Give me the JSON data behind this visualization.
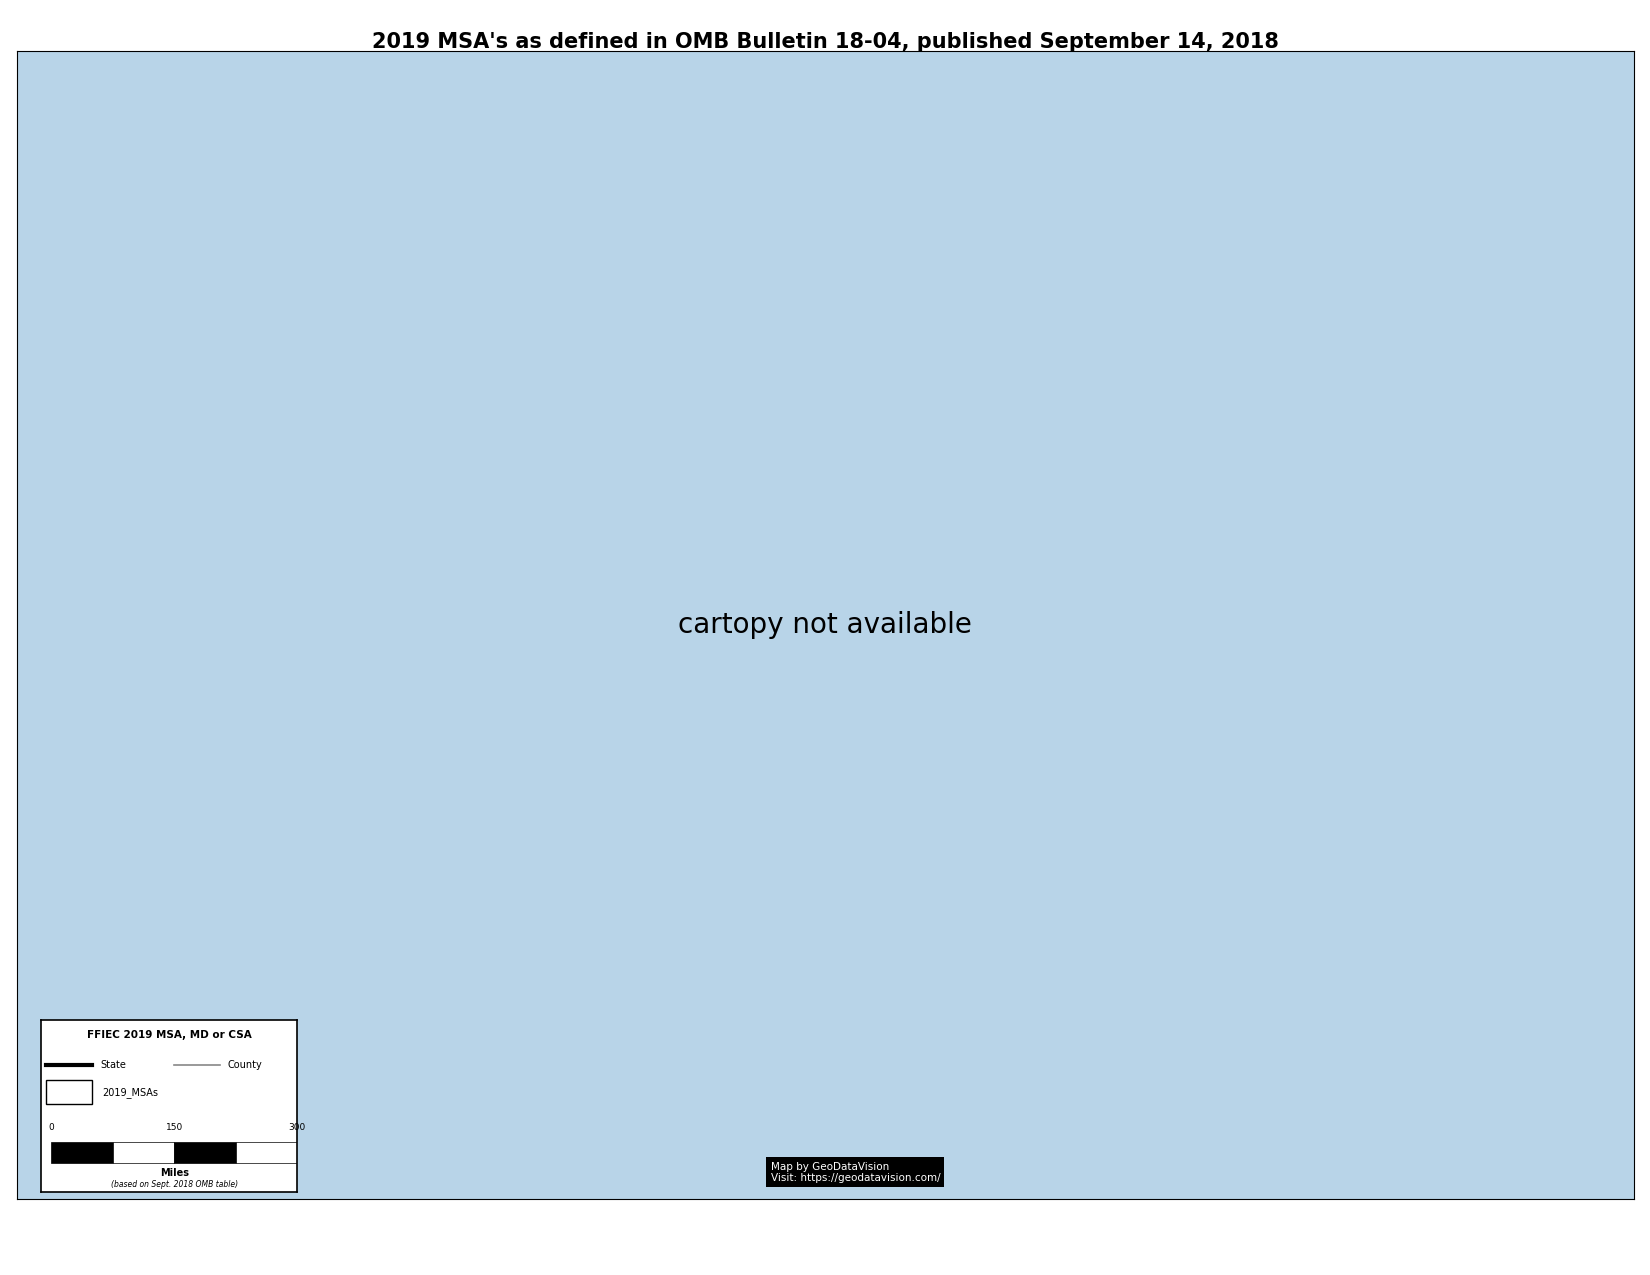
{
  "title": "2019 MSA's as defined in OMB Bulletin 18-04, published September 14, 2018",
  "title_fontsize": 15,
  "title_fontweight": "bold",
  "background_color": "#ffffff",
  "map_ocean_color": "#b8d4e8",
  "map_land_color": "#ffffff",
  "map_lake_color": "#b8d4e8",
  "state_edge_color": "#555555",
  "state_linewidth": 1.2,
  "county_edge_color": "#aaaaaa",
  "county_linewidth": 0.3,
  "coast_linewidth": 0.8,
  "legend_title": "FFIEC 2019 MSA, MD or CSA",
  "legend_box_color": "#ffffff",
  "legend_border_color": "#000000",
  "watermark_text": "Map by GeoDataVision\nVisit: https://geodatavision.com/",
  "watermark_bg": "#000000",
  "watermark_fg": "#ffffff",
  "footnote": "(based on Sept. 2018 OMB table)",
  "scale_values": [
    "0",
    "150",
    "300"
  ],
  "fig_width": 16.5,
  "fig_height": 12.75,
  "dpi": 100,
  "map_extent": [
    -125.5,
    -65.5,
    23.5,
    50.5
  ],
  "proj_lon": -96,
  "proj_lat": 39,
  "msa_colors": [
    "#e63946",
    "#457b9d",
    "#2a9d8f",
    "#e9c46a",
    "#f4a261",
    "#264653",
    "#a8dadc",
    "#1d3557",
    "#6a994e",
    "#bc4749",
    "#8338ec",
    "#fb5607",
    "#ff006e",
    "#3a86ff",
    "#06d6a0",
    "#8ecae6",
    "#219ebc",
    "#023047",
    "#ffb703",
    "#fd9e02",
    "#a2d2ff",
    "#cdb4db",
    "#ffc8dd",
    "#ffafcc",
    "#8b5e3c",
    "#c77dff",
    "#7b2d8b",
    "#00b4d8",
    "#0077b6",
    "#90e0ef",
    "#d62828",
    "#f77f00",
    "#fcbf49",
    "#003049",
    "#588157",
    "#a3b18a",
    "#3a5a40",
    "#344e41",
    "#6b705c",
    "#a5a58d",
    "#cb997e",
    "#ddbea9",
    "#b98b73",
    "#a7c957",
    "#386641",
    "#bc6c25",
    "#dda15e",
    "#606c38",
    "#283618",
    "#bc4749",
    "#82b29a",
    "#f38375",
    "#4ecdc4",
    "#e8a0bf",
    "#ba90c6",
    "#c0dbea",
    "#f9c784",
    "#fc7a1e",
    "#f24c00",
    "#a63d2f",
    "#7b9e87",
    "#9b2335",
    "#2191fb",
    "#ffd166",
    "#ef476f",
    "#118ab2",
    "#9b5de5",
    "#f15bb5",
    "#fee440",
    "#00bbf9",
    "#845ec2",
    "#d65db1",
    "#ff6f91",
    "#ff9671",
    "#ffc75f",
    "#2c73d2",
    "#0089ba",
    "#008f7a",
    "#4b4453",
    "#b39cd0",
    "#6a0572",
    "#1b4332",
    "#40916c",
    "#52b788",
    "#74c69d",
    "#b7e4c7",
    "#d8f3dc",
    "#e9d8a6",
    "#ee9b00",
    "#ca6702",
    "#bb3e03",
    "#ae2012",
    "#9b2226",
    "#005f73",
    "#0a9396",
    "#94d2bd",
    "#e9d8a6",
    "#ee9b00"
  ]
}
